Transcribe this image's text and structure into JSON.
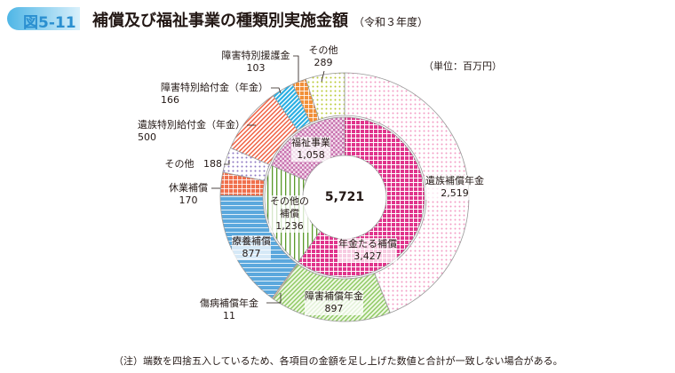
{
  "header": {
    "figure_no": "図5-11",
    "title": "補償及び福祉事業の種類別実施金額",
    "period": "（令和３年度）"
  },
  "unit": "（単位：百万円）",
  "note": "（注）端数を四捨五入しているため、各項目の金額を足し上げた数値と合計が一致しない場合がある。",
  "chart_data": {
    "type": "pie",
    "variant": "double-donut",
    "total_label": "5,721",
    "inner": [
      {
        "name": "年金たる補償",
        "value": 3427,
        "label": "3,427",
        "fg": "#e0348c",
        "bg": "#ffffff",
        "pattern": "squares"
      },
      {
        "name": "その他の補償",
        "value": 1236,
        "label": "1,236",
        "fg": "#5a9a2a",
        "bg": "#ffffff",
        "pattern": "vstripes"
      },
      {
        "name": "福祉事業",
        "value": 1058,
        "label": "1,058",
        "fg": "#c874b0",
        "bg": "#f3dcec",
        "pattern": "check"
      }
    ],
    "outer": [
      {
        "name": "遺族補償年金",
        "value": 2519,
        "label": "2,519",
        "fg": "#f29cc4",
        "bg": "#ffffff",
        "pattern": "dots"
      },
      {
        "name": "障害補償年金",
        "value": 897,
        "label": "897",
        "fg": "#8cc860",
        "bg": "#eef8e2",
        "pattern": "diag"
      },
      {
        "name": "傷病補償年金",
        "value": 11,
        "label": "11",
        "fg": "#e08a3a",
        "bg": "#f6d2a8",
        "pattern": "solid"
      },
      {
        "name": "療養補償",
        "value": 877,
        "label": "877",
        "fg": "#ffffff",
        "bg": "#5ba8dd",
        "pattern": "hlines"
      },
      {
        "name": "休業補償",
        "value": 170,
        "label": "170",
        "fg": "#ffffff",
        "bg": "#f0704c",
        "pattern": "grid"
      },
      {
        "name": "その他",
        "value": 188,
        "label": "188",
        "fg": "#8a74c0",
        "bg": "#ffffff",
        "pattern": "dots"
      },
      {
        "name": "遺族特別給付金（年金）",
        "value": 500,
        "label": "500",
        "fg": "#ef5a3a",
        "bg": "#ffffff",
        "pattern": "diag"
      },
      {
        "name": "障害特別給付金（年金）",
        "value": 166,
        "label": "166",
        "fg": "#ffffff",
        "bg": "#29aee2",
        "pattern": "diag"
      },
      {
        "name": "障害特別援護金",
        "value": 103,
        "label": "103",
        "fg": "#ffffff",
        "bg": "#f29038",
        "pattern": "grid"
      },
      {
        "name": "その他",
        "value": 289,
        "label": "289",
        "fg": "#b8c830",
        "bg": "#ffffff",
        "pattern": "dots"
      }
    ]
  }
}
